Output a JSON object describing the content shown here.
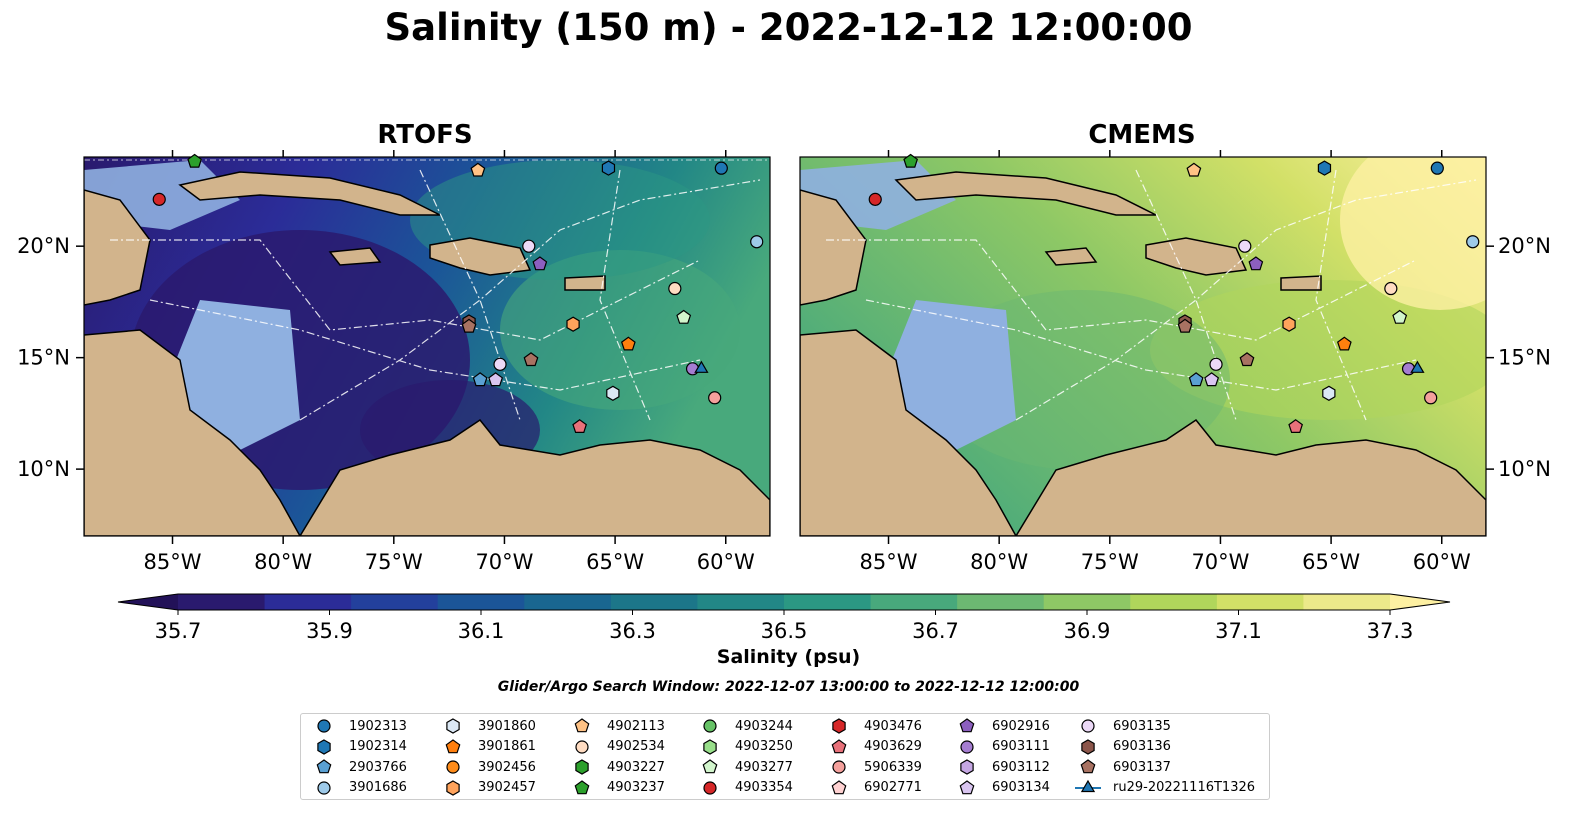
{
  "title": "Salinity (150 m) - 2022-12-12 12:00:00",
  "panels": [
    {
      "title": "RTOFS",
      "palette": "rtofs"
    },
    {
      "title": "CMEMS",
      "palette": "cmems"
    }
  ],
  "axes": {
    "lon_ticks": [
      "85°W",
      "80°W",
      "75°W",
      "70°W",
      "65°W",
      "60°W"
    ],
    "lat_ticks": [
      "20°N",
      "15°N",
      "10°N"
    ],
    "lon_range": [
      -89,
      -58
    ],
    "lat_range": [
      7,
      24
    ]
  },
  "colorbar": {
    "label": "Salinity (psu)",
    "ticks": [
      "35.7",
      "35.9",
      "36.1",
      "36.3",
      "36.5",
      "36.7",
      "36.9",
      "37.1",
      "37.3"
    ],
    "colors": [
      "#2a1a6e",
      "#2b2c98",
      "#23409c",
      "#1b5598",
      "#196690",
      "#1c7689",
      "#228786",
      "#2b9883",
      "#48a97c",
      "#6cb872",
      "#8ec865",
      "#b0d65b",
      "#d2e067",
      "#ece98a"
    ],
    "extend_low": "#221158",
    "extend_high": "#fdf0a2"
  },
  "search_window": "Glider/Argo Search Window: 2022-12-07 13:00:00 to 2022-12-12 12:00:00",
  "legend": [
    {
      "label": "1902313",
      "marker": "circle",
      "color": "#1f77b4"
    },
    {
      "label": "1902314",
      "marker": "hexagon",
      "color": "#1f77b4"
    },
    {
      "label": "2903766",
      "marker": "pentagon",
      "color": "#5aa0d3"
    },
    {
      "label": "3901686",
      "marker": "circle",
      "color": "#9ecae9"
    },
    {
      "label": "3901860",
      "marker": "hexagon",
      "color": "#dbe8f5"
    },
    {
      "label": "3901861",
      "marker": "pentagon",
      "color": "#ff7f0e"
    },
    {
      "label": "3902456",
      "marker": "circle",
      "color": "#ff8c1a"
    },
    {
      "label": "3902457",
      "marker": "hexagon",
      "color": "#ffa35c"
    },
    {
      "label": "4902113",
      "marker": "pentagon",
      "color": "#ffc285"
    },
    {
      "label": "4902534",
      "marker": "circle",
      "color": "#ffdcc2"
    },
    {
      "label": "4903227",
      "marker": "hexagon",
      "color": "#2ca02c"
    },
    {
      "label": "4903237",
      "marker": "pentagon",
      "color": "#2ca02c"
    },
    {
      "label": "4903244",
      "marker": "circle",
      "color": "#66c266"
    },
    {
      "label": "4903250",
      "marker": "hexagon",
      "color": "#98df8a"
    },
    {
      "label": "4903277",
      "marker": "pentagon",
      "color": "#d2f5cc"
    },
    {
      "label": "4903354",
      "marker": "circle",
      "color": "#d62728"
    },
    {
      "label": "4903476",
      "marker": "hexagon",
      "color": "#d62728"
    },
    {
      "label": "4903629",
      "marker": "pentagon",
      "color": "#e8717a"
    },
    {
      "label": "5906339",
      "marker": "circle",
      "color": "#f4a09c"
    },
    {
      "label": "6902771",
      "marker": "pentagon",
      "color": "#ffd2d2"
    },
    {
      "label": "6902916",
      "marker": "pentagon",
      "color": "#8c5fbf"
    },
    {
      "label": "6903111",
      "marker": "circle",
      "color": "#a57dd1"
    },
    {
      "label": "6903112",
      "marker": "hexagon",
      "color": "#c5a7e3"
    },
    {
      "label": "6903134",
      "marker": "pentagon",
      "color": "#d9c5f0"
    },
    {
      "label": "6903135",
      "marker": "circle",
      "color": "#ecd9f7"
    },
    {
      "label": "6903136",
      "marker": "hexagon",
      "color": "#8c564b"
    },
    {
      "label": "6903137",
      "marker": "pentagon",
      "color": "#a87262"
    },
    {
      "label": "ru29-20221116T1326",
      "marker": "triangle-line",
      "color": "#1f77b4"
    }
  ],
  "floats": [
    {
      "id": "4903354",
      "lon": -85.6,
      "lat": 22.1
    },
    {
      "id": "4903237",
      "lon": -84.0,
      "lat": 23.8
    },
    {
      "id": "4902113",
      "lon": -71.2,
      "lat": 23.4
    },
    {
      "id": "1902314",
      "lon": -65.3,
      "lat": 23.5
    },
    {
      "id": "1902313",
      "lon": -60.2,
      "lat": 23.5
    },
    {
      "id": "3901686",
      "lon": -58.6,
      "lat": 20.2
    },
    {
      "id": "6903135",
      "lon": -68.9,
      "lat": 20.0
    },
    {
      "id": "6902916",
      "lon": -68.4,
      "lat": 19.2
    },
    {
      "id": "4902534",
      "lon": -62.3,
      "lat": 18.1
    },
    {
      "id": "6903136",
      "lon": -71.6,
      "lat": 16.6
    },
    {
      "id": "6903137",
      "lon": -71.6,
      "lat": 16.4
    },
    {
      "id": "3902457",
      "lon": -66.9,
      "lat": 16.5
    },
    {
      "id": "3901861",
      "lon": -64.4,
      "lat": 15.6
    },
    {
      "id": "6903135",
      "lon": -70.2,
      "lat": 14.7
    },
    {
      "id": "6903137",
      "lon": -68.8,
      "lat": 14.9
    },
    {
      "id": "2903766",
      "lon": -71.1,
      "lat": 14.0
    },
    {
      "id": "6903134",
      "lon": -70.4,
      "lat": 14.0
    },
    {
      "id": "3901860",
      "lon": -65.1,
      "lat": 13.4
    },
    {
      "id": "6903111",
      "lon": -61.5,
      "lat": 14.5
    },
    {
      "id": "5906339",
      "lon": -60.5,
      "lat": 13.2
    },
    {
      "id": "4903629",
      "lon": -66.6,
      "lat": 11.9
    },
    {
      "id": "4903277",
      "lon": -61.9,
      "lat": 16.8
    },
    {
      "id": "ru29-20221116T1326",
      "lon": -61.1,
      "lat": 14.5
    }
  ]
}
